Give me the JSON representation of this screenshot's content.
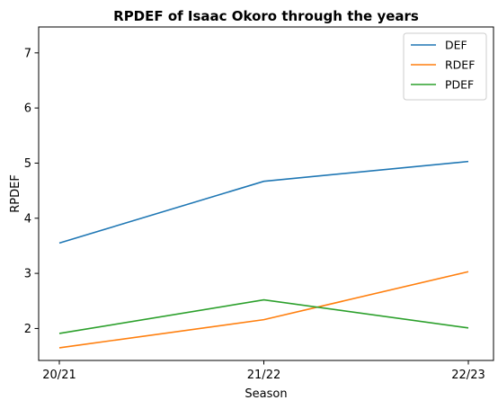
{
  "chart_data": {
    "type": "line",
    "title": "RPDEF of Isaac Okoro through the years",
    "xlabel": "Season",
    "ylabel": "RPDEF",
    "categories": [
      "20/21",
      "21/22",
      "22/23"
    ],
    "ylim": [
      1.42,
      7.47
    ],
    "yticks": [
      2,
      3,
      4,
      5,
      6,
      7
    ],
    "grid": false,
    "legend_position": "top-right",
    "series": [
      {
        "name": "DEF",
        "color": "#1f77b4",
        "values": [
          3.55,
          4.67,
          5.03
        ]
      },
      {
        "name": "RDEF",
        "color": "#ff7f0e",
        "values": [
          1.65,
          2.16,
          3.03
        ]
      },
      {
        "name": "PDEF",
        "color": "#2ca02c",
        "values": [
          1.91,
          2.52,
          2.01
        ]
      }
    ]
  }
}
